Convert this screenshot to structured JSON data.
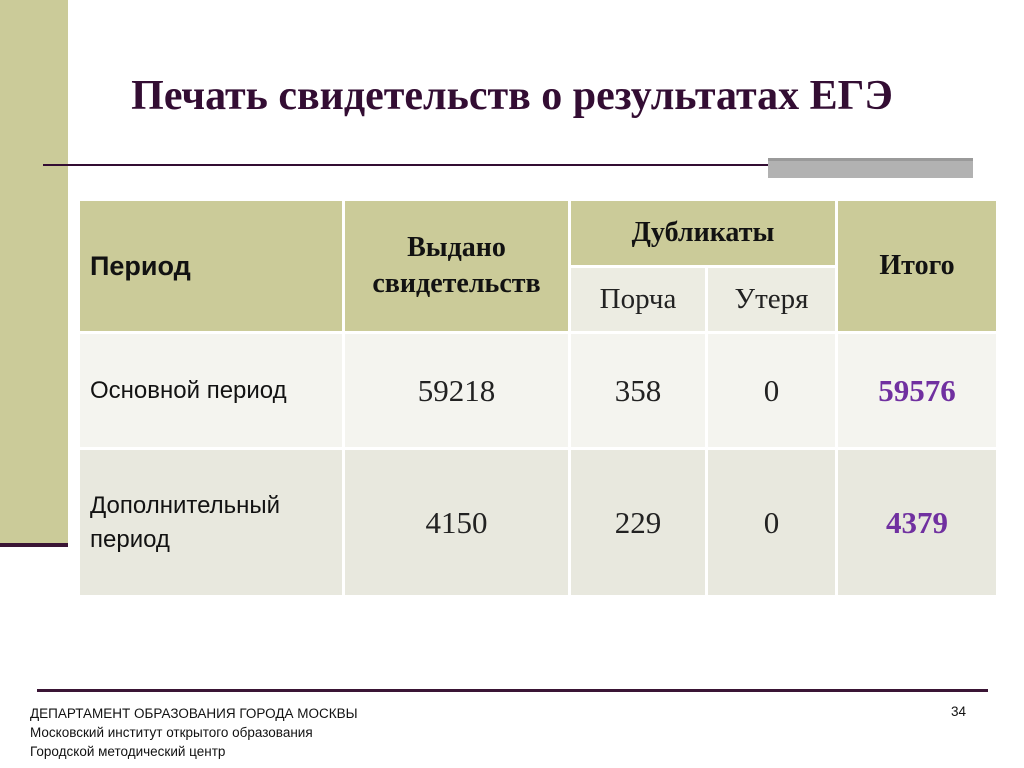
{
  "slide": {
    "title": "Печать свидетельств о результатах ЕГЭ",
    "page_number": "34"
  },
  "table": {
    "headers": {
      "period": "Период",
      "issued": "Выдано свидетельств",
      "duplicates": "Дубликаты",
      "damage": "Порча",
      "loss": "Утеря",
      "total": "Итого"
    },
    "rows": [
      {
        "period": "Основной период",
        "issued": "59218",
        "damage": "358",
        "loss": "0",
        "total": "59576"
      },
      {
        "period": "Дополнительный период",
        "issued": "4150",
        "damage": "229",
        "loss": "0",
        "total": "4379"
      }
    ]
  },
  "footer": {
    "line1": "ДЕПАРТАМЕНТ ОБРАЗОВАНИЯ ГОРОДА МОСКВЫ",
    "line2": "Московский институт открытого образования",
    "line3": "Городской методический центр"
  },
  "colors": {
    "title": "#330d33",
    "header_fill": "#cbcb99",
    "total_value": "#7030a0"
  }
}
